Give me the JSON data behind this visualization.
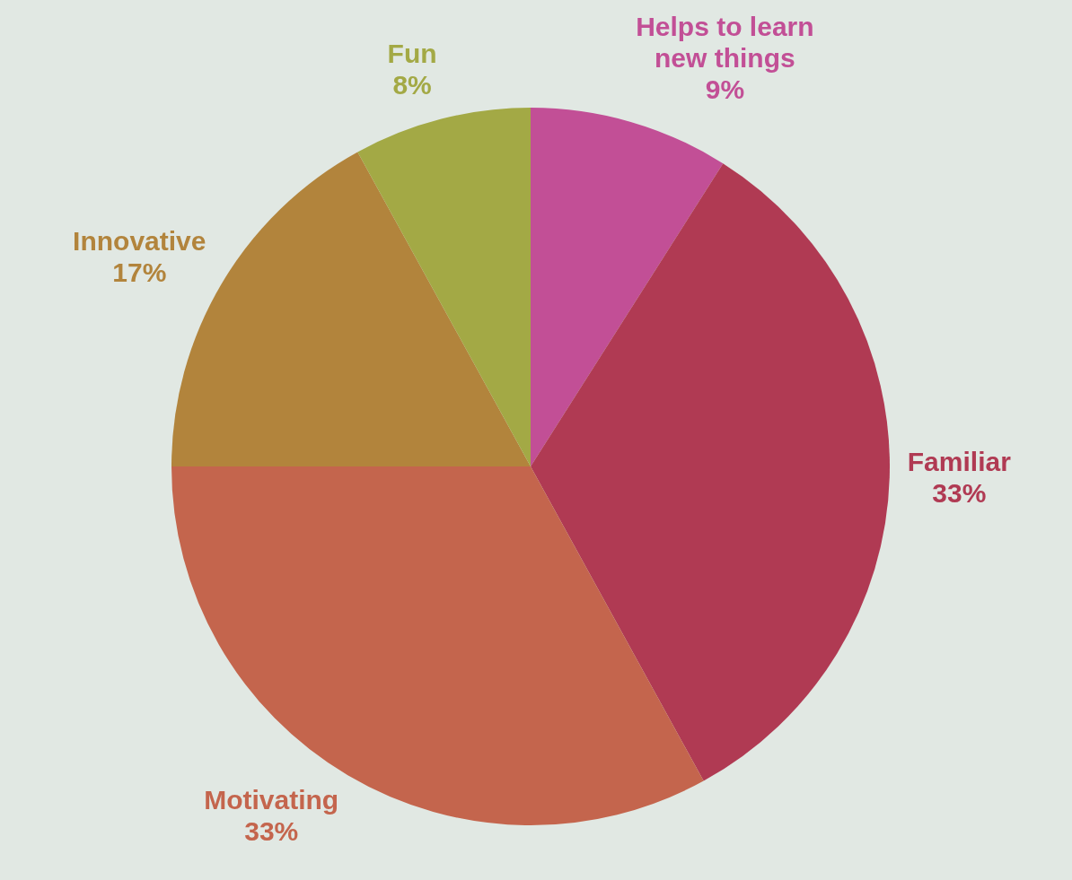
{
  "chart_data": {
    "type": "pie",
    "categories": [
      "Helps to learn new things",
      "Familiar",
      "Motivating",
      "Innovative",
      "Fun"
    ],
    "values": [
      9,
      33,
      33,
      17,
      8
    ],
    "colors": [
      "#c24f96",
      "#b03a53",
      "#c4654d",
      "#b2843c",
      "#a3a945"
    ],
    "value_labels": [
      "9%",
      "33%",
      "33%",
      "17%",
      "8%"
    ],
    "legend": false
  }
}
